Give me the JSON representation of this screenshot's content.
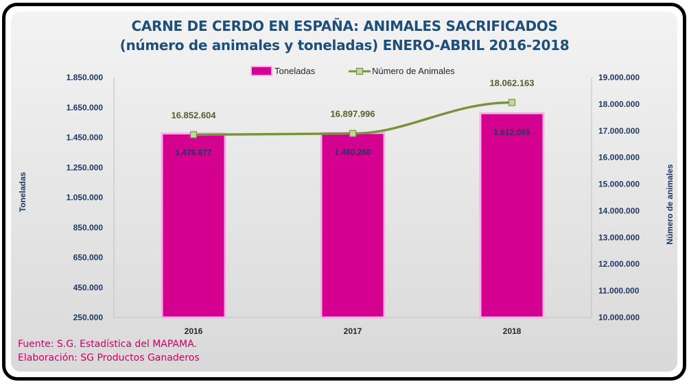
{
  "chart_data": {
    "type": "bar",
    "title": "CARNE DE CERDO EN ESPAÑA: ANIMALES SACRIFICADOS",
    "subtitle": "(número de animales y toneladas) ENERO-ABRIL 2016-2018",
    "categories": [
      "2016",
      "2017",
      "2018"
    ],
    "series": [
      {
        "name": "Toneladas",
        "type": "bar",
        "axis": "left",
        "values": [
          1476877,
          1480260,
          1612065
        ],
        "value_labels": [
          "1.476.877",
          "1.480.260",
          "1.612.065"
        ]
      },
      {
        "name": "Número de Animales",
        "type": "line",
        "axis": "right",
        "values": [
          16852604,
          16897996,
          18062163
        ],
        "value_labels": [
          "16.852.604",
          "16.897.996",
          "18.062.163"
        ]
      }
    ],
    "ylabel": "Toneladas",
    "y2label": "Número de animales",
    "ylim": [
      250000,
      1850000
    ],
    "y2lim": [
      10000000,
      19000000
    ],
    "yticks": [
      250000,
      450000,
      650000,
      850000,
      1050000,
      1250000,
      1450000,
      1650000,
      1850000
    ],
    "ytick_labels": [
      "250.000",
      "450.000",
      "650.000",
      "850.000",
      "1.050.000",
      "1.250.000",
      "1.450.000",
      "1.650.000",
      "1.850.000"
    ],
    "y2ticks": [
      10000000,
      11000000,
      12000000,
      13000000,
      14000000,
      15000000,
      16000000,
      17000000,
      18000000,
      19000000
    ],
    "y2tick_labels": [
      "10.000.000",
      "11.000.000",
      "12.000.000",
      "13.000.000",
      "14.000.000",
      "15.000.000",
      "16.000.000",
      "17.000.000",
      "18.000.000",
      "19.000.000"
    ],
    "legend_position": "top-center",
    "grid": false,
    "colors": {
      "bar": "#d4008f",
      "bar_edge": "#f2b3e6",
      "line": "#77933c",
      "marker": "#c3d69b",
      "axis_text": "#1f3864",
      "line_label": "#4f6228"
    }
  },
  "footer": {
    "source": "Fuente: S.G. Estadística del MAPAMA.",
    "elaboration": "Elaboración: SG Productos Ganaderos"
  }
}
